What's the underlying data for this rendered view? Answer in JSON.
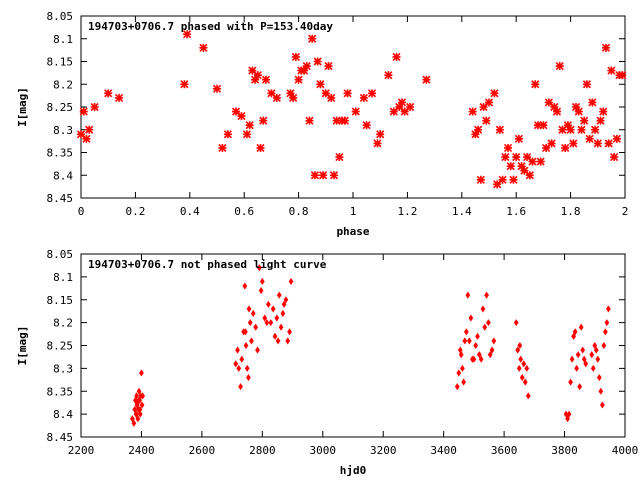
{
  "chart_data": [
    {
      "type": "scatter",
      "title": "194703+0706.7 phased with P=153.40day",
      "xlabel": "phase",
      "ylabel": "I[mag]",
      "xlim": [
        0,
        2
      ],
      "ylim": [
        8.05,
        8.45
      ],
      "y_inverted": true,
      "x_ticks": [
        "0",
        "0.2",
        "0.4",
        "0.6",
        "0.8",
        "1",
        "1.2",
        "1.4",
        "1.6",
        "1.8",
        "2"
      ],
      "y_ticks": [
        "8.05",
        "8.1",
        "8.15",
        "8.2",
        "8.25",
        "8.3",
        "8.35",
        "8.4",
        "8.45"
      ],
      "grid": false,
      "marker": "cross",
      "color": "#ff0000",
      "series": [
        {
          "x": [
            0.0,
            0.01,
            0.02,
            0.03,
            0.05,
            0.1,
            0.14,
            0.38,
            0.39,
            0.45,
            0.5,
            0.52,
            0.54,
            0.57,
            0.59,
            0.61,
            0.62,
            0.63,
            0.64,
            0.65,
            0.66,
            0.67,
            0.68,
            0.7,
            0.72,
            0.77,
            0.78,
            0.79,
            0.8,
            0.81,
            0.82,
            0.83,
            0.84,
            0.85,
            0.86,
            0.87,
            0.88,
            0.89,
            0.9,
            0.91,
            0.92,
            0.93,
            0.94,
            0.95,
            0.96,
            0.97,
            0.98,
            1.01,
            1.04,
            1.05,
            1.07,
            1.09,
            1.1,
            1.13,
            1.15,
            1.16,
            1.17,
            1.18,
            1.19,
            1.21,
            1.27,
            1.44,
            1.45,
            1.46,
            1.47,
            1.48,
            1.49,
            1.5,
            1.52,
            1.53,
            1.54,
            1.55,
            1.56,
            1.57,
            1.58,
            1.59,
            1.6,
            1.61,
            1.62,
            1.63,
            1.64,
            1.65,
            1.66,
            1.67,
            1.68,
            1.69,
            1.7,
            1.71,
            1.72,
            1.73,
            1.74,
            1.75,
            1.76,
            1.77,
            1.78,
            1.79,
            1.8,
            1.81,
            1.82,
            1.83,
            1.84,
            1.85,
            1.86,
            1.87,
            1.88,
            1.89,
            1.9,
            1.91,
            1.92,
            1.93,
            1.94,
            1.95,
            1.96,
            1.97,
            1.98,
            1.99
          ],
          "y": [
            8.31,
            8.26,
            8.32,
            8.3,
            8.25,
            8.22,
            8.23,
            8.2,
            8.09,
            8.12,
            8.21,
            8.34,
            8.31,
            8.26,
            8.27,
            8.31,
            8.29,
            8.17,
            8.19,
            8.18,
            8.34,
            8.28,
            8.19,
            8.22,
            8.23,
            8.22,
            8.23,
            8.14,
            8.19,
            8.17,
            8.17,
            8.16,
            8.28,
            8.1,
            8.4,
            8.15,
            8.2,
            8.4,
            8.22,
            8.16,
            8.23,
            8.4,
            8.28,
            8.36,
            8.28,
            8.28,
            8.22,
            8.26,
            8.23,
            8.29,
            8.22,
            8.33,
            8.31,
            8.18,
            8.26,
            8.14,
            8.25,
            8.24,
            8.26,
            8.25,
            8.19,
            8.26,
            8.31,
            8.3,
            8.41,
            8.25,
            8.28,
            8.24,
            8.22,
            8.42,
            8.3,
            8.41,
            8.36,
            8.34,
            8.38,
            8.41,
            8.36,
            8.32,
            8.38,
            8.39,
            8.36,
            8.4,
            8.37,
            8.2,
            8.29,
            8.37,
            8.29,
            8.34,
            8.24,
            8.33,
            8.25,
            8.26,
            8.16,
            8.3,
            8.34,
            8.29,
            8.3,
            8.33,
            8.25,
            8.26,
            8.3,
            8.28,
            8.2,
            8.32,
            8.24,
            8.3,
            8.33,
            8.28,
            8.26,
            8.12,
            8.33,
            8.17,
            8.36,
            8.32,
            8.18,
            8.18
          ]
        }
      ]
    },
    {
      "type": "scatter",
      "title": "194703+0706.7 not phased light curve",
      "xlabel": "hjd0",
      "ylabel": "I[mag]",
      "xlim": [
        2200,
        4000
      ],
      "ylim": [
        8.05,
        8.45
      ],
      "y_inverted": true,
      "x_ticks": [
        "2200",
        "2400",
        "2600",
        "2800",
        "3000",
        "3200",
        "3400",
        "3600",
        "3800",
        "4000"
      ],
      "y_ticks": [
        "8.05",
        "8.1",
        "8.15",
        "8.2",
        "8.25",
        "8.3",
        "8.35",
        "8.4",
        "8.45"
      ],
      "grid": false,
      "marker": "diamond",
      "color": "#ff0000",
      "series": [
        {
          "x": [
            2370,
            2375,
            2378,
            2380,
            2382,
            2384,
            2386,
            2388,
            2390,
            2392,
            2394,
            2396,
            2398,
            2400,
            2402,
            2404,
            2385,
            2395,
            2383,
            2391,
            2712,
            2718,
            2722,
            2728,
            2732,
            2738,
            2742,
            2746,
            2750,
            2754,
            2760,
            2764,
            2770,
            2778,
            2784,
            2790,
            2796,
            2800,
            2808,
            2815,
            2820,
            2828,
            2836,
            2842,
            2848,
            2852,
            2856,
            2862,
            2868,
            2872,
            2878,
            2884,
            2890,
            2895,
            2756,
            2744,
            3445,
            3450,
            3455,
            3458,
            3462,
            3466,
            3470,
            3475,
            3480,
            3485,
            3490,
            3495,
            3500,
            3506,
            3512,
            3518,
            3524,
            3530,
            3536,
            3542,
            3548,
            3554,
            3560,
            3566,
            3640,
            3645,
            3650,
            3655,
            3660,
            3665,
            3670,
            3675,
            3680,
            3652,
            3805,
            3810,
            3815,
            3820,
            3825,
            3830,
            3835,
            3840,
            3845,
            3850,
            3855,
            3860,
            3865,
            3870,
            3890,
            3895,
            3900,
            3905,
            3910,
            3915,
            3920,
            3925,
            3930,
            3935,
            3940,
            3945
          ],
          "y": [
            8.41,
            8.42,
            8.39,
            8.37,
            8.4,
            8.36,
            8.38,
            8.41,
            8.39,
            8.35,
            8.37,
            8.4,
            8.36,
            8.31,
            8.38,
            8.36,
            8.38,
            8.39,
            8.4,
            8.37,
            8.29,
            8.26,
            8.3,
            8.34,
            8.28,
            8.22,
            8.12,
            8.25,
            8.3,
            8.32,
            8.2,
            8.24,
            8.18,
            8.21,
            8.26,
            8.08,
            8.13,
            8.11,
            8.19,
            8.2,
            8.16,
            8.2,
            8.17,
            8.23,
            8.19,
            8.24,
            8.14,
            8.21,
            8.18,
            8.16,
            8.15,
            8.24,
            8.22,
            8.11,
            8.17,
            8.22,
            8.34,
            8.31,
            8.26,
            8.27,
            8.3,
            8.33,
            8.24,
            8.22,
            8.14,
            8.24,
            8.19,
            8.28,
            8.28,
            8.25,
            8.23,
            8.27,
            8.28,
            8.17,
            8.21,
            8.14,
            8.2,
            8.27,
            8.26,
            8.24,
            8.2,
            8.26,
            8.3,
            8.28,
            8.32,
            8.29,
            8.33,
            8.3,
            8.36,
            8.25,
            8.4,
            8.41,
            8.4,
            8.33,
            8.28,
            8.23,
            8.22,
            8.3,
            8.27,
            8.34,
            8.21,
            8.26,
            8.28,
            8.29,
            8.27,
            8.3,
            8.25,
            8.26,
            8.28,
            8.32,
            8.35,
            8.38,
            8.25,
            8.22,
            8.2,
            8.17
          ]
        }
      ]
    }
  ]
}
